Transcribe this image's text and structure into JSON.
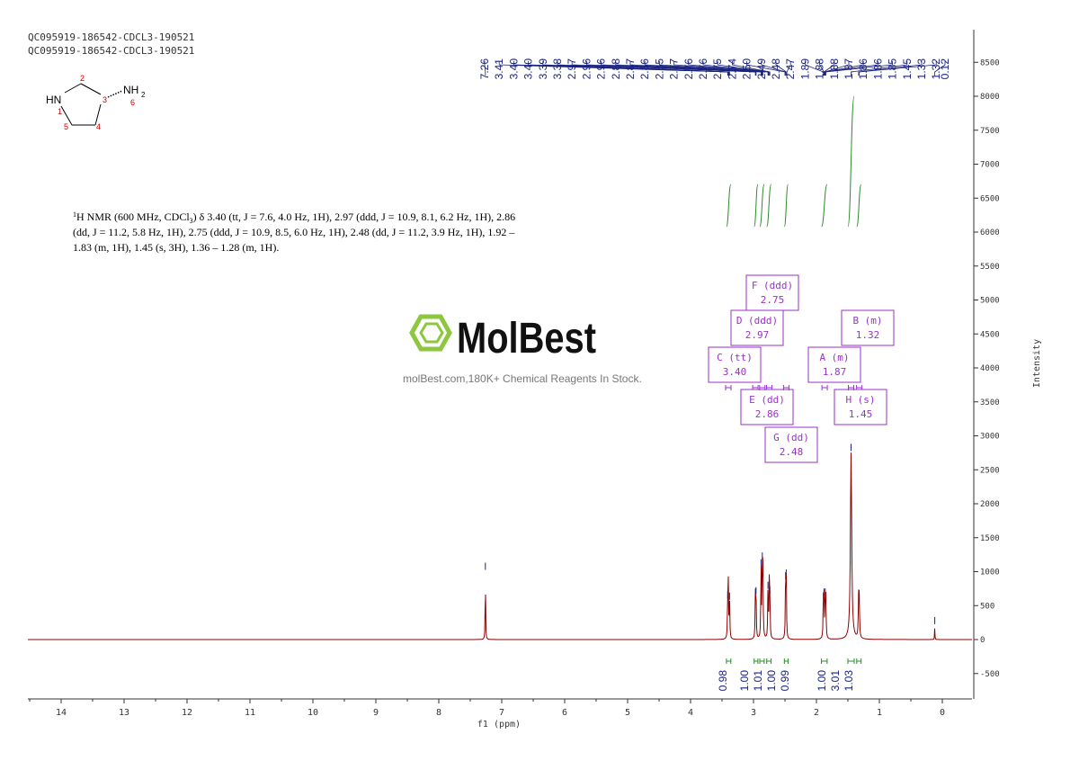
{
  "header": {
    "line1": "QC095919-186542-CDCL3-190521",
    "line2": "QC095919-186542-CDCL3-190521"
  },
  "structure": {
    "hn_label": "HN",
    "nh2_label": "NH",
    "nh2_sub": "2",
    "atom_numbers": [
      "1",
      "2",
      "3",
      "4",
      "5",
      "6"
    ]
  },
  "nmr_text": {
    "line1_pre": "H NMR (600 MHz, CDCl",
    "line1_sub": "3",
    "line1_post": ") δ 3.40 (tt, J = 7.6, 4.0 Hz, 1H), 2.97 (ddd, J = 10.9, 8.1, 6.2 Hz, 1H), 2.86",
    "sup": "1",
    "line2": "(dd, J = 11.2, 5.8 Hz, 1H), 2.75 (ddd, J = 10.9, 8.5, 6.0 Hz, 1H), 2.48 (dd, J = 11.2, 3.9 Hz, 1H), 1.92 –",
    "line3": "1.83 (m, 1H), 1.45 (s, 3H), 1.36 – 1.28 (m, 1H)."
  },
  "watermark": {
    "brand": "MolBest",
    "tagline": "molBest.com,180K+ Chemical Reagents In Stock.",
    "color": "#8dc63f"
  },
  "colors": {
    "spectrum": "#8b0000",
    "peak_labels": "#1a237e",
    "integral": "#2e8b2e",
    "multiplet_box": "#9932cc"
  },
  "chart_data": {
    "type": "line",
    "title": "",
    "xlabel": "f1 (ppm)",
    "ylabel": "Intensity",
    "xlim": [
      14.5,
      -0.5
    ],
    "ylim": [
      -900,
      8800
    ],
    "x_ticks": [
      14,
      13,
      12,
      11,
      10,
      9,
      8,
      7,
      6,
      5,
      4,
      3,
      2,
      1,
      0
    ],
    "y_ticks": [
      -500,
      0,
      500,
      1000,
      1500,
      2000,
      2500,
      3000,
      3500,
      4000,
      4500,
      5000,
      5500,
      6000,
      6500,
      7000,
      7500,
      8000,
      8500
    ],
    "peak_labels": [
      "7.26",
      "3.41",
      "3.40",
      "3.40",
      "3.39",
      "3.38",
      "2.97",
      "2.96",
      "2.96",
      "2.88",
      "2.87",
      "2.86",
      "2.85",
      "2.77",
      "2.76",
      "2.76",
      "2.75",
      "2.74",
      "2.50",
      "2.49",
      "2.48",
      "2.47",
      "1.89",
      "1.88",
      "1.88",
      "1.87",
      "1.86",
      "1.86",
      "1.85",
      "1.45",
      "1.33",
      "1.32",
      "0.12"
    ],
    "peaks": [
      {
        "ppm": 7.26,
        "height": 1000,
        "width": 0.004
      },
      {
        "ppm": 3.41,
        "height": 580,
        "width": 0.005
      },
      {
        "ppm": 3.4,
        "height": 780,
        "width": 0.005
      },
      {
        "ppm": 3.38,
        "height": 560,
        "width": 0.005
      },
      {
        "ppm": 2.97,
        "height": 620,
        "width": 0.005
      },
      {
        "ppm": 2.96,
        "height": 640,
        "width": 0.005
      },
      {
        "ppm": 2.88,
        "height": 1050,
        "width": 0.005
      },
      {
        "ppm": 2.86,
        "height": 1150,
        "width": 0.005
      },
      {
        "ppm": 2.85,
        "height": 900,
        "width": 0.005
      },
      {
        "ppm": 2.77,
        "height": 720,
        "width": 0.005
      },
      {
        "ppm": 2.75,
        "height": 780,
        "width": 0.005
      },
      {
        "ppm": 2.74,
        "height": 650,
        "width": 0.005
      },
      {
        "ppm": 2.49,
        "height": 860,
        "width": 0.005
      },
      {
        "ppm": 2.48,
        "height": 900,
        "width": 0.005
      },
      {
        "ppm": 1.89,
        "height": 560,
        "width": 0.005
      },
      {
        "ppm": 1.88,
        "height": 620,
        "width": 0.005
      },
      {
        "ppm": 1.86,
        "height": 620,
        "width": 0.005
      },
      {
        "ppm": 1.85,
        "height": 540,
        "width": 0.005
      },
      {
        "ppm": 1.45,
        "height": 2750,
        "width": 0.012
      },
      {
        "ppm": 1.33,
        "height": 560,
        "width": 0.006
      },
      {
        "ppm": 1.32,
        "height": 540,
        "width": 0.006
      },
      {
        "ppm": 0.12,
        "height": 200,
        "width": 0.003
      }
    ],
    "integrals": [
      {
        "from": 3.43,
        "to": 3.36,
        "value": "0.98",
        "y_low": 6080,
        "y_high": 6700
      },
      {
        "from": 2.99,
        "to": 2.93,
        "value": "1.00",
        "y_low": 6080,
        "y_high": 6700
      },
      {
        "from": 2.9,
        "to": 2.83,
        "value": "1.01",
        "y_low": 6080,
        "y_high": 6700
      },
      {
        "from": 2.79,
        "to": 2.72,
        "value": "1.00",
        "y_low": 6080,
        "y_high": 6700
      },
      {
        "from": 2.51,
        "to": 2.45,
        "value": "0.99",
        "y_low": 6080,
        "y_high": 6700
      },
      {
        "from": 1.92,
        "to": 1.83,
        "value": "1.00",
        "y_low": 6080,
        "y_high": 6700
      },
      {
        "from": 1.5,
        "to": 1.4,
        "value": "3.01",
        "y_low": 6080,
        "y_high": 8000
      },
      {
        "from": 1.36,
        "to": 1.29,
        "value": "1.03",
        "y_low": 6080,
        "y_high": 6700
      }
    ],
    "multiplets": [
      {
        "label": "F (ddd)",
        "shift": "2.75",
        "ppm": 2.75
      },
      {
        "label": "D (ddd)",
        "shift": "2.97",
        "ppm": 2.97
      },
      {
        "label": "B (m)",
        "shift": "1.32",
        "ppm": 1.32
      },
      {
        "label": "C (tt)",
        "shift": "3.40",
        "ppm": 3.4
      },
      {
        "label": "A (m)",
        "shift": "1.87",
        "ppm": 1.87
      },
      {
        "label": "E (dd)",
        "shift": "2.86",
        "ppm": 2.86
      },
      {
        "label": "H (s)",
        "shift": "1.45",
        "ppm": 1.45
      },
      {
        "label": "G (dd)",
        "shift": "2.48",
        "ppm": 2.48
      }
    ]
  }
}
